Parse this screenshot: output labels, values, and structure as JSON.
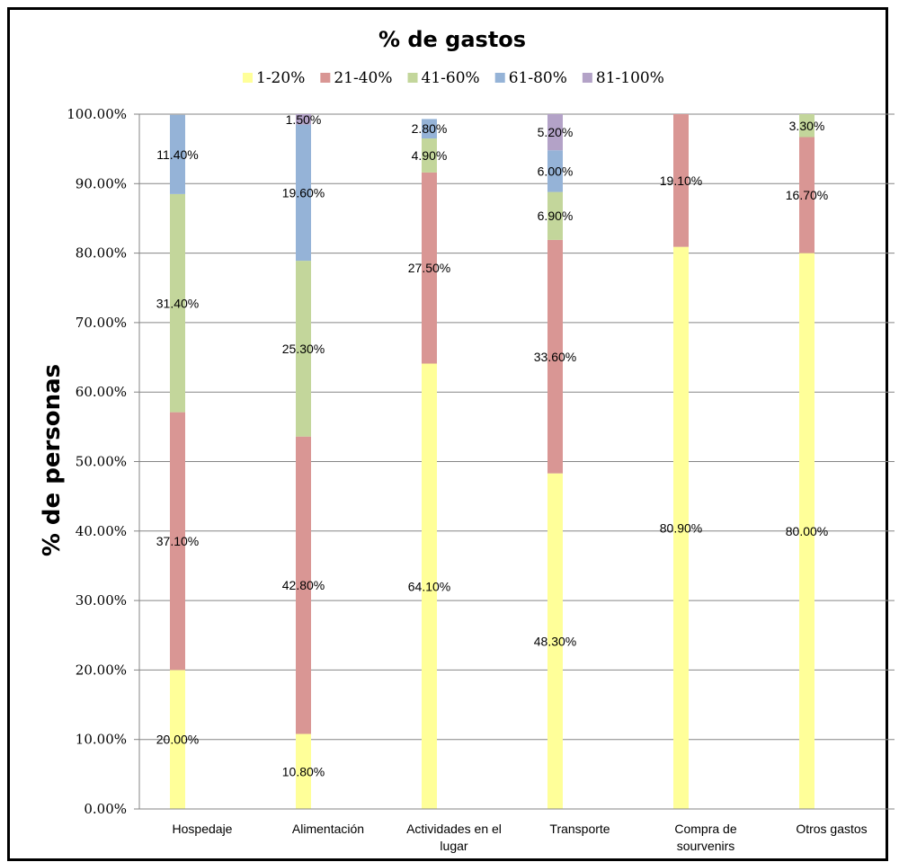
{
  "chart_data": {
    "type": "bar",
    "stacked": true,
    "title": "% de gastos",
    "ylabel": "% de personas",
    "xlabel": "",
    "ylim": [
      0,
      100
    ],
    "yticks": [
      "0.00%",
      "10.00%",
      "20.00%",
      "30.00%",
      "40.00%",
      "50.00%",
      "60.00%",
      "70.00%",
      "80.00%",
      "90.00%",
      "100.00%"
    ],
    "grid": true,
    "legend_position": "top",
    "categories": [
      [
        "Hospedaje"
      ],
      [
        "Alimentación"
      ],
      [
        "Actividades en el",
        "lugar"
      ],
      [
        "Transporte"
      ],
      [
        "Compra de",
        "sourvenirs"
      ],
      [
        "Otros gastos"
      ]
    ],
    "series": [
      {
        "name": "1-20%",
        "color": "#ffff99",
        "values": [
          20.0,
          10.8,
          64.1,
          48.3,
          80.9,
          80.0
        ],
        "labels": [
          "20.00%",
          "10.80%",
          "64.10%",
          "48.30%",
          "80.90%",
          "80.00%"
        ]
      },
      {
        "name": "21-40%",
        "color": "#d99694",
        "values": [
          37.1,
          42.8,
          27.5,
          33.6,
          19.1,
          16.7
        ],
        "labels": [
          "37.10%",
          "42.80%",
          "27.50%",
          "33.60%",
          "19.10%",
          "16.70%"
        ]
      },
      {
        "name": "41-60%",
        "color": "#c3d69b",
        "values": [
          31.4,
          25.3,
          4.9,
          6.9,
          0,
          3.3
        ],
        "labels": [
          "31.40%",
          "25.30%",
          "4.90%",
          "6.90%",
          "",
          "3.30%"
        ]
      },
      {
        "name": "61-80%",
        "color": "#95b3d7",
        "values": [
          11.4,
          19.6,
          2.8,
          6.0,
          0,
          0
        ],
        "labels": [
          "11.40%",
          "19.60%",
          "2.80%",
          "6.00%",
          "",
          ""
        ]
      },
      {
        "name": "81-100%",
        "color": "#b3a2c7",
        "values": [
          0,
          1.5,
          0,
          5.2,
          0,
          0
        ],
        "labels": [
          "",
          "1.50%",
          "",
          "5.20%",
          "",
          ""
        ]
      }
    ]
  }
}
